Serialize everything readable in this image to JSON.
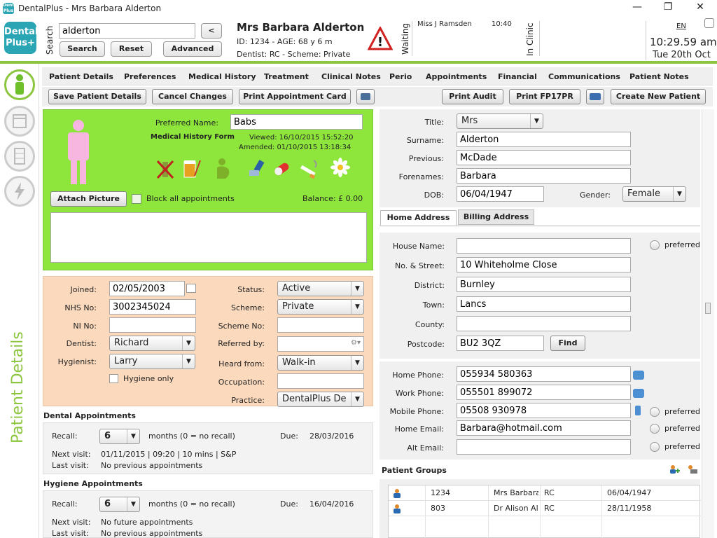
{
  "window": {
    "title": "DentalPlus - Mrs Barbara Alderton",
    "minimize": "—",
    "maximize": "❐",
    "close": "✕"
  },
  "brand": {
    "line1": "Dental",
    "line2": "Plus+",
    "small": "Dental Plus"
  },
  "search": {
    "label": "Search",
    "value": "alderton",
    "back_label": "<",
    "search_btn": "Search",
    "reset_btn": "Reset",
    "advanced_btn": "Advanced"
  },
  "patient": {
    "name": "Mrs Barbara Alderton",
    "id_line": "ID: 1234 - AGE: 68 y 6 m",
    "dentist_line": "Dentist: RC - Scheme: Private"
  },
  "status": {
    "waiting_label": "Waiting",
    "waiting_name": "Miss J Ramsden",
    "waiting_time": "10:40",
    "inclinic_label": "In Clinic"
  },
  "clock": {
    "lang": "EN",
    "time": "10:29.59 am",
    "date": "Tue 20th Oct"
  },
  "sidebar": {
    "label": "Patient Details"
  },
  "menu": [
    "Patient Details",
    "Preferences",
    "Medical History",
    "Treatment",
    "Clinical Notes",
    "Perio",
    "Appointments",
    "Financial",
    "Communications",
    "Patient Notes"
  ],
  "toolbar": {
    "save": "Save Patient Details",
    "cancel": "Cancel Changes",
    "print_card": "Print Appointment Card",
    "print_audit": "Print Audit",
    "print_fp17pr": "Print FP17PR",
    "create_new": "Create New Patient"
  },
  "summary": {
    "preferred_name_label": "Preferred Name:",
    "preferred_name": "Babs",
    "mh_form_label": "Medical History Form",
    "viewed": "Viewed: 16/10/2015 15:52:20",
    "amended": "Amended: 01/10/2015 13:18:34",
    "attach_picture": "Attach Picture",
    "block_label": "Block all appointments",
    "balance": "Balance: £ 0.00"
  },
  "details": {
    "joined_label": "Joined:",
    "joined": "02/05/2003",
    "nhs_label": "NHS No:",
    "nhs": "3002345024",
    "ni_label": "NI No:",
    "ni": "",
    "dentist_label": "Dentist:",
    "dentist": "Richard",
    "hygienist_label": "Hygienist:",
    "hygienist": "Larry",
    "hygiene_only": "Hygiene only",
    "status_label": "Status:",
    "status": "Active",
    "scheme_label": "Scheme:",
    "scheme": "Private",
    "scheme_no_label": "Scheme No:",
    "scheme_no": "",
    "referred_label": "Referred by:",
    "referred": "",
    "heard_label": "Heard from:",
    "heard": "Walk-in",
    "occupation_label": "Occupation:",
    "occupation": "",
    "practice_label": "Practice:",
    "practice": "DentalPlus De"
  },
  "dental_appts": {
    "title": "Dental Appointments",
    "recall_label": "Recall:",
    "recall": "6",
    "months_note": "months (0 = no recall)",
    "due_label": "Due:",
    "due": "28/03/2016",
    "next_label": "Next visit:",
    "next": "01/11/2015 | 09:20 | 10 mins | S&P",
    "last_label": "Last visit:",
    "last": "No previous appointments"
  },
  "hygiene_appts": {
    "title": "Hygiene Appointments",
    "recall_label": "Recall:",
    "recall": "6",
    "months_note": "months (0 = no recall)",
    "due_label": "Due:",
    "due": "16/04/2016",
    "next_label": "Next visit:",
    "next": "No future appointments",
    "last_label": "Last visit:",
    "last": "No previous appointments"
  },
  "personal": {
    "title_label": "Title:",
    "title": "Mrs",
    "surname_label": "Surname:",
    "surname": "Alderton",
    "previous_label": "Previous:",
    "previous": "McDade",
    "forenames_label": "Forenames:",
    "forenames": "Barbara",
    "dob_label": "DOB:",
    "dob": "06/04/1947",
    "gender_label": "Gender:",
    "gender": "Female"
  },
  "address": {
    "tab_home": "Home Address",
    "tab_billing": "Billing Address",
    "house_label": "House Name:",
    "house": "",
    "preferred": "preferred",
    "street_label": "No. & Street:",
    "street": "10 Whiteholme Close",
    "district_label": "District:",
    "district": "Burnley",
    "town_label": "Town:",
    "town": "Lancs",
    "county_label": "County:",
    "county": "",
    "postcode_label": "Postcode:",
    "postcode": "BU2 3QZ",
    "find_btn": "Find"
  },
  "contact": {
    "home_phone_label": "Home Phone:",
    "home_phone": "055934 580363",
    "work_phone_label": "Work Phone:",
    "work_phone": "055501 899072",
    "mobile_label": "Mobile Phone:",
    "mobile": "05508 930978",
    "email_label": "Home Email:",
    "email": "Barbara@hotmail.com",
    "alt_email_label": "Alt Email:",
    "alt_email": "",
    "preferred": "preferred"
  },
  "groups": {
    "title": "Patient Groups",
    "rows": [
      {
        "id": "1234",
        "name": "Mrs Barbara",
        "dentist": "RC",
        "dob": "06/04/1947"
      },
      {
        "id": "803",
        "name": "Dr Alison Al",
        "dentist": "RC",
        "dob": "28/11/1958"
      }
    ]
  }
}
